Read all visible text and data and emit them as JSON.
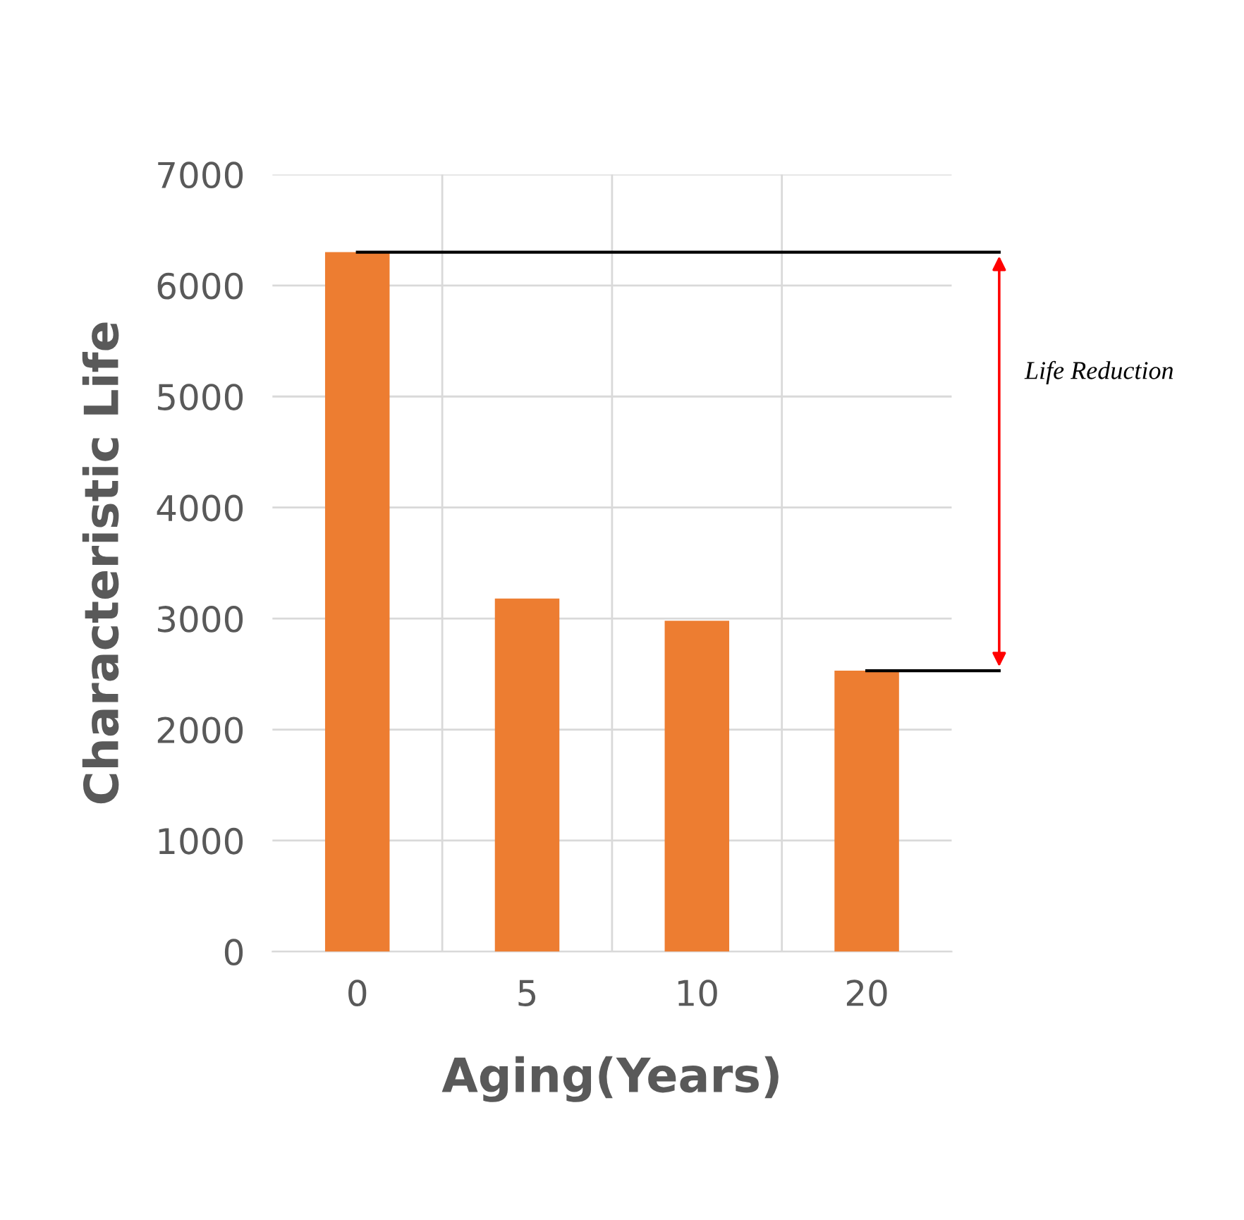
{
  "chart_data": {
    "type": "bar",
    "xlabel": "Aging(Years)",
    "ylabel": "Characteristic Life",
    "categories": [
      "0",
      "5",
      "10",
      "20"
    ],
    "values": [
      6300,
      3180,
      2980,
      2530
    ],
    "color": "#ed7d31",
    "ylim": [
      0,
      7000
    ],
    "yticks": [
      0,
      1000,
      2000,
      3000,
      4000,
      5000,
      6000,
      7000
    ],
    "grid": true,
    "ref_lines": [
      {
        "axis": "y",
        "value": 6300,
        "color": "#000000"
      },
      {
        "axis": "y",
        "value": 2530,
        "color": "#000000"
      }
    ],
    "annotations": [
      "Life Reduction"
    ]
  }
}
